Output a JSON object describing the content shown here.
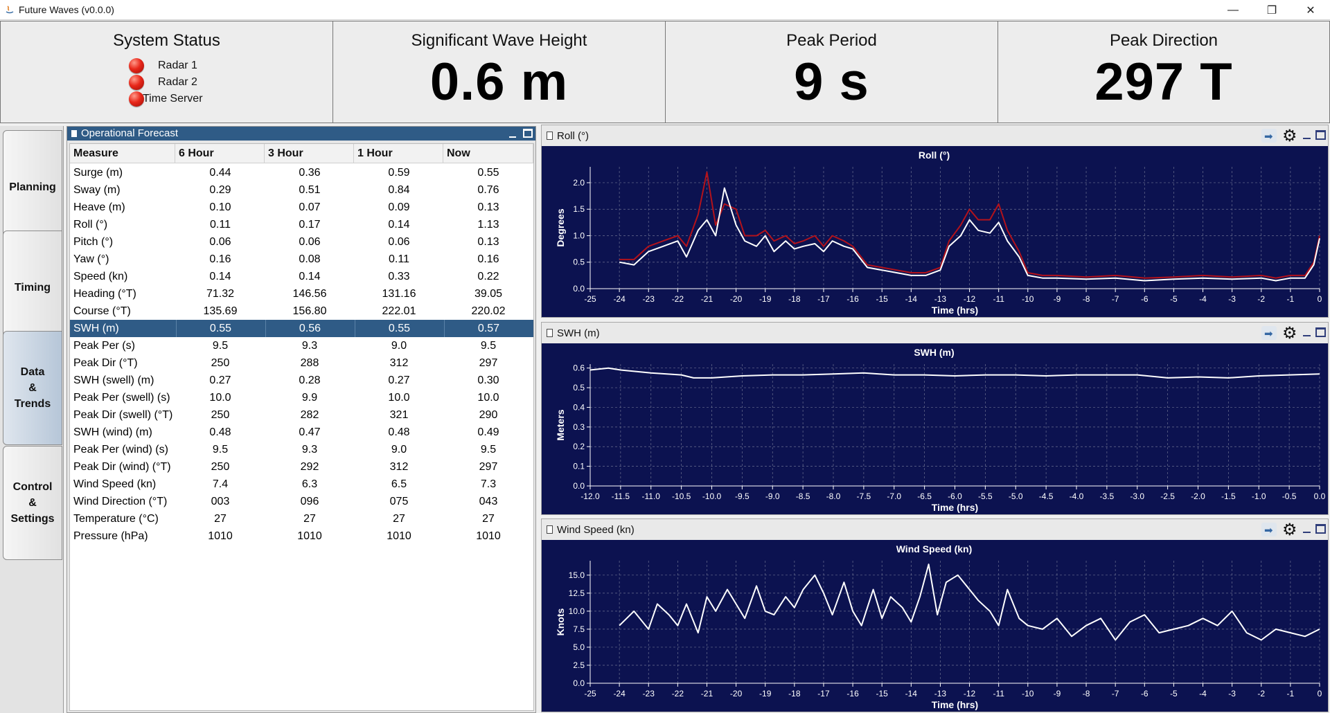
{
  "window": {
    "title": "Future Waves (v0.0.0)",
    "controls": {
      "minimize": "—",
      "restore": "❐",
      "close": "✕"
    }
  },
  "status": {
    "title": "System Status",
    "items": [
      {
        "label": "Radar 1",
        "state_color": "#e8271a"
      },
      {
        "label": "Radar 2",
        "state_color": "#e8271a"
      },
      {
        "label": "Time Server",
        "state_color": "#e8271a"
      }
    ]
  },
  "tiles": [
    {
      "title": "Significant Wave Height",
      "value": "0.6 m"
    },
    {
      "title": "Peak Period",
      "value": "9 s"
    },
    {
      "title": "Peak Direction",
      "value": "297 T"
    }
  ],
  "nav": {
    "items": [
      {
        "label": "Planning",
        "active": false
      },
      {
        "label": "Timing",
        "active": false
      },
      {
        "label": "Data\n&\nTrends",
        "active": true
      },
      {
        "label": "Control\n&\nSettings",
        "active": false
      }
    ]
  },
  "forecast": {
    "title": "Operational Forecast",
    "columns": [
      "Measure",
      "6 Hour",
      "3 Hour",
      "1 Hour",
      "Now"
    ],
    "selected_row": 9,
    "rows": [
      [
        "Surge (m)",
        "0.44",
        "0.36",
        "0.59",
        "0.55"
      ],
      [
        "Sway (m)",
        "0.29",
        "0.51",
        "0.84",
        "0.76"
      ],
      [
        "Heave (m)",
        "0.10",
        "0.07",
        "0.09",
        "0.13"
      ],
      [
        "Roll (°)",
        "0.11",
        "0.17",
        "0.14",
        "1.13"
      ],
      [
        "Pitch (°)",
        "0.06",
        "0.06",
        "0.06",
        "0.13"
      ],
      [
        "Yaw (°)",
        "0.16",
        "0.08",
        "0.11",
        "0.16"
      ],
      [
        "Speed (kn)",
        "0.14",
        "0.14",
        "0.33",
        "0.22"
      ],
      [
        "Heading (°T)",
        "71.32",
        "146.56",
        "131.16",
        "39.05"
      ],
      [
        "Course (°T)",
        "135.69",
        "156.80",
        "222.01",
        "220.02"
      ],
      [
        "SWH (m)",
        "0.55",
        "0.56",
        "0.55",
        "0.57"
      ],
      [
        "Peak Per (s)",
        "9.5",
        "9.3",
        "9.0",
        "9.5"
      ],
      [
        "Peak Dir (°T)",
        "250",
        "288",
        "312",
        "297"
      ],
      [
        "SWH (swell) (m)",
        "0.27",
        "0.28",
        "0.27",
        "0.30"
      ],
      [
        "Peak Per (swell) (s)",
        "10.0",
        "9.9",
        "10.0",
        "10.0"
      ],
      [
        "Peak Dir (swell) (°T)",
        "250",
        "282",
        "321",
        "290"
      ],
      [
        "SWH (wind) (m)",
        "0.48",
        "0.47",
        "0.48",
        "0.49"
      ],
      [
        "Peak Per (wind) (s)",
        "9.5",
        "9.3",
        "9.0",
        "9.5"
      ],
      [
        "Peak Dir (wind) (°T)",
        "250",
        "292",
        "312",
        "297"
      ],
      [
        "Wind Speed (kn)",
        "7.4",
        "6.3",
        "6.5",
        "7.3"
      ],
      [
        "Wind Direction (°T)",
        "003",
        "096",
        "075",
        "043"
      ],
      [
        "Temperature (°C)",
        "27",
        "27",
        "27",
        "27"
      ],
      [
        "Pressure (hPa)",
        "1010",
        "1010",
        "1010",
        "1010"
      ]
    ]
  },
  "chart_panels": [
    {
      "panel_title": "Roll (°)",
      "icons": [
        "pin-icon",
        "gear-icon",
        "minimize-icon",
        "maximize-icon"
      ]
    },
    {
      "panel_title": "SWH (m)",
      "icons": [
        "pin-icon",
        "gear-icon",
        "minimize-icon",
        "maximize-icon"
      ]
    },
    {
      "panel_title": "Wind Speed (kn)",
      "icons": [
        "pin-icon",
        "gear-icon",
        "minimize-icon",
        "maximize-icon"
      ]
    }
  ],
  "colors": {
    "chart_bg": "#0c1250",
    "grid": "#6b7090",
    "series_white": "#ffffff",
    "series_red": "#b3121b",
    "selected_row": "#2f5b86"
  },
  "chart_data": [
    {
      "type": "line",
      "title": "Roll (°)",
      "xlabel": "Time (hrs)",
      "ylabel": "Degrees",
      "xlim": [
        -25,
        0
      ],
      "ylim": [
        0,
        2.3
      ],
      "xticks": [
        -25,
        -24,
        -23,
        -22,
        -21,
        -20,
        -19,
        -18,
        -17,
        -16,
        -15,
        -14,
        -13,
        -12,
        -11,
        -10,
        -9,
        -8,
        -7,
        -6,
        -5,
        -4,
        -3,
        -2,
        -1,
        0
      ],
      "yticks": [
        "0.0",
        "0.5",
        "1.0",
        "1.5",
        "2.0"
      ],
      "series": [
        {
          "color": "#ffffff",
          "x": [
            -24,
            -23.5,
            -23,
            -22.5,
            -22,
            -21.7,
            -21.3,
            -21,
            -20.7,
            -20.4,
            -20,
            -19.7,
            -19.3,
            -19,
            -18.7,
            -18.3,
            -18,
            -17.7,
            -17.3,
            -17,
            -16.7,
            -16.3,
            -16,
            -15.5,
            -15,
            -14.5,
            -14,
            -13.5,
            -13,
            -12.7,
            -12.3,
            -12,
            -11.7,
            -11.3,
            -11,
            -10.7,
            -10.3,
            -10,
            -9.5,
            -9,
            -8,
            -7,
            -6,
            -5,
            -4,
            -3,
            -2,
            -1.5,
            -1,
            -0.5,
            -0.2,
            0
          ],
          "y": [
            0.5,
            0.45,
            0.7,
            0.8,
            0.9,
            0.6,
            1.1,
            1.3,
            1.0,
            1.9,
            1.2,
            0.9,
            0.8,
            1.0,
            0.7,
            0.9,
            0.75,
            0.8,
            0.85,
            0.7,
            0.9,
            0.8,
            0.75,
            0.4,
            0.35,
            0.3,
            0.25,
            0.25,
            0.35,
            0.8,
            1.0,
            1.3,
            1.1,
            1.05,
            1.25,
            0.9,
            0.6,
            0.25,
            0.2,
            0.2,
            0.18,
            0.2,
            0.15,
            0.18,
            0.2,
            0.18,
            0.2,
            0.15,
            0.2,
            0.2,
            0.45,
            0.95
          ]
        },
        {
          "color": "#b3121b",
          "x": [
            -24,
            -23.5,
            -23,
            -22.5,
            -22,
            -21.7,
            -21.3,
            -21,
            -20.7,
            -20.4,
            -20,
            -19.7,
            -19.3,
            -19,
            -18.7,
            -18.3,
            -18,
            -17.7,
            -17.3,
            -17,
            -16.7,
            -16.3,
            -16,
            -15.5,
            -15,
            -14.5,
            -14,
            -13.5,
            -13,
            -12.7,
            -12.3,
            -12,
            -11.7,
            -11.3,
            -11,
            -10.7,
            -10.3,
            -10,
            -9.5,
            -9,
            -8,
            -7,
            -6,
            -5,
            -4,
            -3,
            -2,
            -1.5,
            -1,
            -0.5,
            -0.2,
            0
          ],
          "y": [
            0.55,
            0.55,
            0.8,
            0.9,
            1.0,
            0.8,
            1.4,
            2.2,
            1.2,
            1.6,
            1.5,
            1.0,
            1.0,
            1.1,
            0.9,
            1.0,
            0.85,
            0.9,
            1.0,
            0.8,
            1.0,
            0.9,
            0.8,
            0.45,
            0.4,
            0.35,
            0.3,
            0.3,
            0.4,
            0.9,
            1.2,
            1.5,
            1.3,
            1.3,
            1.6,
            1.1,
            0.7,
            0.3,
            0.25,
            0.25,
            0.22,
            0.25,
            0.2,
            0.22,
            0.25,
            0.22,
            0.25,
            0.2,
            0.25,
            0.25,
            0.5,
            1.0
          ]
        }
      ]
    },
    {
      "type": "line",
      "title": "SWH (m)",
      "xlabel": "Time (hrs)",
      "ylabel": "Meters",
      "xlim": [
        -12,
        0
      ],
      "ylim": [
        0,
        0.62
      ],
      "xticks": [
        "-12.0",
        "-11.5",
        "-11.0",
        "-10.5",
        "-10.0",
        "-9.5",
        "-9.0",
        "-8.5",
        "-8.0",
        "-7.5",
        "-7.0",
        "-6.5",
        "-6.0",
        "-5.5",
        "-5.0",
        "-4.5",
        "-4.0",
        "-3.5",
        "-3.0",
        "-2.5",
        "-2.0",
        "-1.5",
        "-1.0",
        "-0.5",
        "0.0"
      ],
      "yticks": [
        "0.0",
        "0.1",
        "0.2",
        "0.3",
        "0.4",
        "0.5",
        "0.6"
      ],
      "series": [
        {
          "color": "#ffffff",
          "x": [
            -12,
            -11.7,
            -11.5,
            -11,
            -10.5,
            -10.3,
            -10,
            -9.5,
            -9,
            -8.5,
            -8,
            -7.5,
            -7,
            -6.5,
            -6,
            -5.5,
            -5,
            -4.5,
            -4,
            -3.5,
            -3,
            -2.5,
            -2,
            -1.5,
            -1,
            -0.5,
            0
          ],
          "y": [
            0.59,
            0.6,
            0.59,
            0.575,
            0.565,
            0.55,
            0.55,
            0.56,
            0.565,
            0.565,
            0.57,
            0.575,
            0.565,
            0.565,
            0.56,
            0.565,
            0.565,
            0.56,
            0.565,
            0.565,
            0.565,
            0.55,
            0.555,
            0.55,
            0.56,
            0.565,
            0.57
          ]
        }
      ]
    },
    {
      "type": "line",
      "title": "Wind Speed (kn)",
      "xlabel": "Time (hrs)",
      "ylabel": "Knots",
      "xlim": [
        -25,
        0
      ],
      "ylim": [
        0,
        17
      ],
      "xticks": [
        -25,
        -24,
        -23,
        -22,
        -21,
        -20,
        -19,
        -18,
        -17,
        -16,
        -15,
        -14,
        -13,
        -12,
        -11,
        -10,
        -9,
        -8,
        -7,
        -6,
        -5,
        -4,
        -3,
        -2,
        -1,
        0
      ],
      "yticks": [
        "0.0",
        "2.5",
        "5.0",
        "7.5",
        "10.0",
        "12.5",
        "15.0"
      ],
      "series": [
        {
          "color": "#ffffff",
          "x": [
            -24,
            -23.5,
            -23,
            -22.7,
            -22.3,
            -22,
            -21.7,
            -21.3,
            -21,
            -20.7,
            -20.3,
            -20,
            -19.7,
            -19.3,
            -19,
            -18.7,
            -18.3,
            -18,
            -17.7,
            -17.3,
            -17,
            -16.7,
            -16.3,
            -16,
            -15.7,
            -15.3,
            -15,
            -14.7,
            -14.3,
            -14,
            -13.7,
            -13.4,
            -13.1,
            -12.8,
            -12.4,
            -12,
            -11.7,
            -11.3,
            -11,
            -10.7,
            -10.3,
            -10,
            -9.5,
            -9,
            -8.5,
            -8,
            -7.5,
            -7,
            -6.5,
            -6,
            -5.5,
            -5,
            -4.5,
            -4,
            -3.5,
            -3,
            -2.5,
            -2,
            -1.5,
            -1,
            -0.5,
            0
          ],
          "y": [
            8,
            10,
            7.5,
            11,
            9.5,
            8,
            11,
            7,
            12,
            10,
            13,
            11,
            9,
            13.5,
            10,
            9.5,
            12,
            10.5,
            13,
            15,
            12.5,
            9.5,
            14,
            10,
            8,
            13,
            9,
            12,
            10.5,
            8.5,
            12,
            16.5,
            9.5,
            14,
            15,
            13,
            11.5,
            10,
            8,
            13,
            9,
            8,
            7.5,
            9,
            6.5,
            8,
            9,
            6,
            8.5,
            9.5,
            7,
            7.5,
            8,
            9,
            8,
            10,
            7,
            6,
            7.5,
            7,
            6.5,
            7.5
          ]
        }
      ]
    }
  ]
}
